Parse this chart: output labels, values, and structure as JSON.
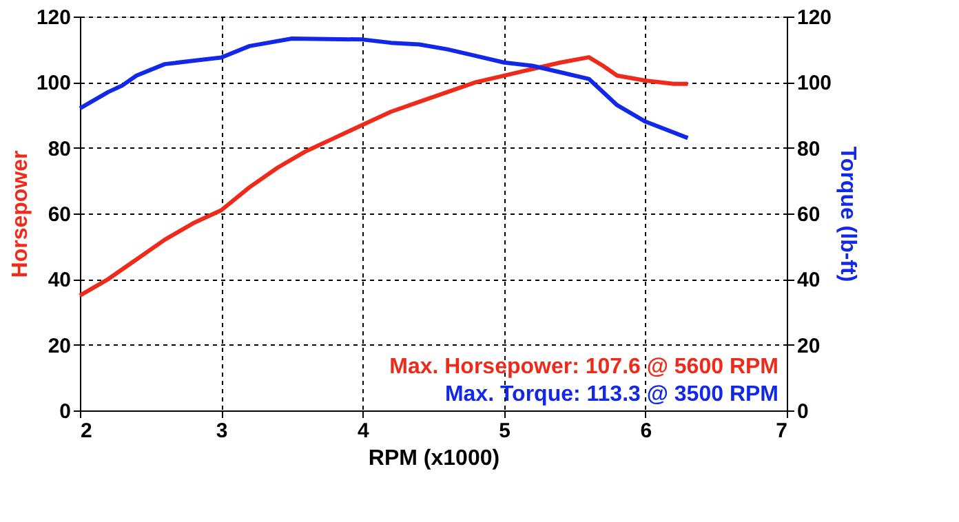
{
  "chart_data": {
    "type": "line",
    "xlabel": "RPM (x1000)",
    "ylabel": "Horsepower",
    "y2label": "Torque (lb-ft)",
    "xlim": [
      2,
      7
    ],
    "xticks": [
      2,
      3,
      4,
      5,
      6,
      7
    ],
    "ylim": [
      0,
      120
    ],
    "yticks": [
      0,
      20,
      40,
      60,
      80,
      100,
      120
    ],
    "y2lim": [
      0,
      120
    ],
    "y2ticks": [
      0,
      20,
      40,
      60,
      80,
      100,
      120
    ],
    "grid": true,
    "line_style": "solid",
    "marker": "none",
    "series": [
      {
        "color": "#ee2a1b",
        "x": [
          2.0,
          2.2,
          2.4,
          2.6,
          2.8,
          3.0,
          3.2,
          3.4,
          3.6,
          3.8,
          4.0,
          4.2,
          4.4,
          4.6,
          4.8,
          5.0,
          5.2,
          5.4,
          5.6,
          5.7,
          5.8,
          6.0,
          6.2,
          6.3
        ],
        "values": [
          35,
          40,
          46,
          52,
          57,
          61,
          68,
          74,
          79,
          83,
          87,
          91,
          94,
          97,
          100,
          102,
          104,
          106,
          107.6,
          105,
          102,
          100.5,
          99.5,
          99.5
        ]
      },
      {
        "color": "#1228e8",
        "axis": "y2",
        "x": [
          2.0,
          2.2,
          2.3,
          2.4,
          2.6,
          2.8,
          3.0,
          3.2,
          3.5,
          4.0,
          4.2,
          4.4,
          4.6,
          4.8,
          5.0,
          5.2,
          5.4,
          5.6,
          5.8,
          6.0,
          6.3
        ],
        "values": [
          92,
          97,
          99,
          102,
          105.5,
          106.5,
          107.5,
          111,
          113.3,
          113,
          112,
          111.5,
          110,
          108,
          106,
          105,
          103,
          101,
          93,
          88,
          83
        ]
      }
    ],
    "annotations": [
      "Max. Horsepower: 107.6 @ 5600 RPM",
      "Max. Torque: 113.3 @ 3500 RPM"
    ]
  }
}
